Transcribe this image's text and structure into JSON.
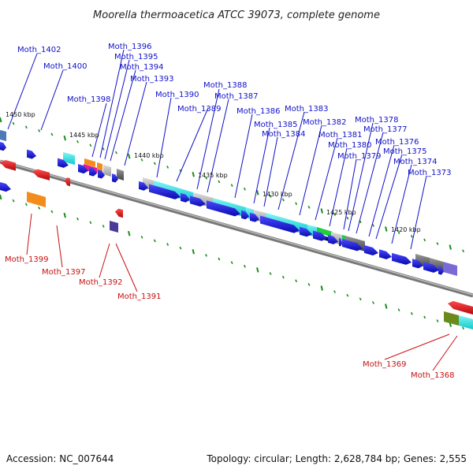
{
  "title": "Moorella thermoacetica ATCC 39073, complete genome",
  "footer": {
    "accession": "Accession: NC_007644",
    "topology": "Topology: circular; Length: 2,628,784 bp; Genes: 2,555"
  },
  "kbp_labels": [
    "1450 kbp",
    "1445 kbp",
    "1440 kbp",
    "1435 kbp",
    "1430 kbp",
    "1425 kbp",
    "1420 kbp"
  ],
  "blue_labels": [
    "Moth_1402",
    "Moth_1400",
    "Moth_1398",
    "Moth_1396",
    "Moth_1395",
    "Moth_1394",
    "Moth_1393",
    "Moth_1390",
    "Moth_1389",
    "Moth_1388",
    "Moth_1387",
    "Moth_1386",
    "Moth_1385",
    "Moth_1384",
    "Moth_1383",
    "Moth_1382",
    "Moth_1381",
    "Moth_1380",
    "Moth_1379",
    "Moth_1378",
    "Moth_1377",
    "Moth_1376",
    "Moth_1375",
    "Moth_1374",
    "Moth_1373"
  ],
  "red_labels": [
    "Moth_1399",
    "Moth_1397",
    "Moth_1392",
    "Moth_1391",
    "Moth_1369",
    "Moth_1368"
  ],
  "colors": {
    "forward_gene": "#1a1ae6",
    "reverse_gene": "#e61a1a",
    "backbone": "#888888",
    "tick": "#1a8c1a",
    "cyan": "#22dde0",
    "gray": "#b8b8b8",
    "dark_gray": "#666666",
    "orange": "#f28c1a",
    "magenta": "#e61a99",
    "green": "#22cc44",
    "olive": "#6b8a1a",
    "lavender": "#7a6ad8",
    "steel": "#4a7ab8"
  }
}
